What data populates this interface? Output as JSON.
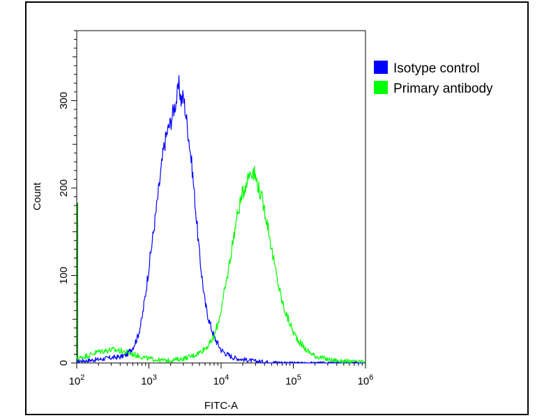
{
  "chart_data": {
    "type": "line",
    "title": "",
    "xlabel": "FITC-A",
    "ylabel": "Count",
    "x_scale": "log",
    "xlim": [
      100,
      1000000
    ],
    "ylim": [
      0,
      380
    ],
    "x_ticks": [
      {
        "value": 100,
        "base": "10",
        "exp": "2"
      },
      {
        "value": 1000,
        "base": "10",
        "exp": "3"
      },
      {
        "value": 10000,
        "base": "10",
        "exp": "4"
      },
      {
        "value": 100000,
        "base": "10",
        "exp": "5"
      },
      {
        "value": 1000000,
        "base": "10",
        "exp": "6"
      }
    ],
    "y_ticks": [
      0,
      100,
      200,
      300
    ],
    "grid": false,
    "legend_position": "top-right",
    "series": [
      {
        "name": "Isotype control",
        "color": "#0000ff",
        "points": [
          [
            100,
            2
          ],
          [
            150,
            3
          ],
          [
            200,
            4
          ],
          [
            300,
            6
          ],
          [
            400,
            7
          ],
          [
            500,
            10
          ],
          [
            600,
            18
          ],
          [
            700,
            30
          ],
          [
            800,
            50
          ],
          [
            900,
            80
          ],
          [
            1000,
            110
          ],
          [
            1200,
            160
          ],
          [
            1400,
            205
          ],
          [
            1600,
            245
          ],
          [
            1800,
            265
          ],
          [
            2000,
            275
          ],
          [
            2200,
            290
          ],
          [
            2400,
            300
          ],
          [
            2600,
            318
          ],
          [
            2800,
            300
          ],
          [
            3000,
            305
          ],
          [
            3300,
            280
          ],
          [
            3600,
            255
          ],
          [
            4000,
            220
          ],
          [
            4500,
            170
          ],
          [
            5000,
            125
          ],
          [
            5500,
            95
          ],
          [
            6000,
            68
          ],
          [
            7000,
            45
          ],
          [
            8000,
            30
          ],
          [
            9000,
            22
          ],
          [
            10000,
            15
          ],
          [
            12000,
            10
          ],
          [
            15000,
            6
          ],
          [
            20000,
            4
          ],
          [
            30000,
            2
          ],
          [
            50000,
            1
          ],
          [
            100000,
            0
          ],
          [
            1000000,
            0
          ]
        ]
      },
      {
        "name": "Primary antibody",
        "color": "#00ff00",
        "points": [
          [
            100,
            5
          ],
          [
            150,
            9
          ],
          [
            200,
            13
          ],
          [
            300,
            15
          ],
          [
            400,
            14
          ],
          [
            500,
            12
          ],
          [
            600,
            10
          ],
          [
            800,
            7
          ],
          [
            1000,
            5
          ],
          [
            1500,
            3
          ],
          [
            2000,
            3
          ],
          [
            3000,
            5
          ],
          [
            4000,
            8
          ],
          [
            5000,
            12
          ],
          [
            6000,
            17
          ],
          [
            7000,
            22
          ],
          [
            8000,
            30
          ],
          [
            9000,
            45
          ],
          [
            10000,
            60
          ],
          [
            12000,
            95
          ],
          [
            14000,
            130
          ],
          [
            16000,
            160
          ],
          [
            18000,
            180
          ],
          [
            20000,
            195
          ],
          [
            22000,
            205
          ],
          [
            25000,
            218
          ],
          [
            28000,
            220
          ],
          [
            32000,
            205
          ],
          [
            36000,
            190
          ],
          [
            40000,
            175
          ],
          [
            45000,
            155
          ],
          [
            50000,
            130
          ],
          [
            60000,
            95
          ],
          [
            70000,
            70
          ],
          [
            80000,
            55
          ],
          [
            90000,
            45
          ],
          [
            100000,
            35
          ],
          [
            120000,
            25
          ],
          [
            150000,
            15
          ],
          [
            200000,
            8
          ],
          [
            300000,
            4
          ],
          [
            500000,
            2
          ],
          [
            1000000,
            1
          ]
        ]
      }
    ]
  },
  "page": {
    "edge_color": "#008000"
  }
}
